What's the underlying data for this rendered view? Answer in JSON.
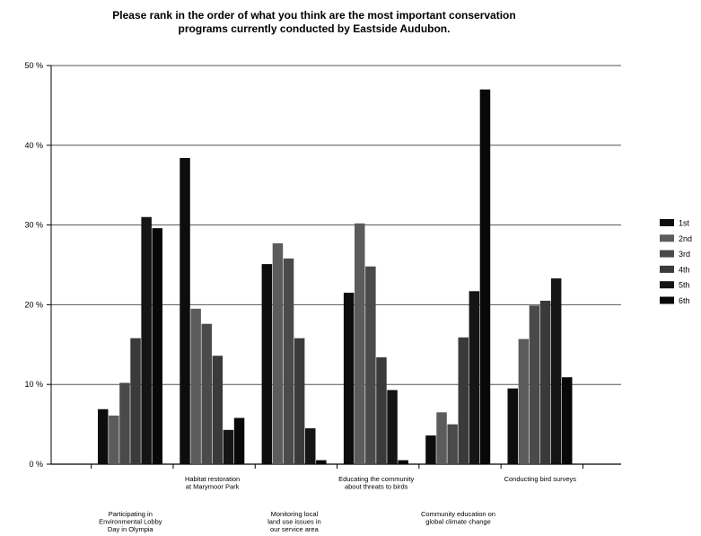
{
  "chart_data": {
    "type": "bar",
    "title_lines": [
      "Please rank in the order of what you think are the most important conservation",
      "programs currently conducted by Eastside Audubon."
    ],
    "categories": [
      "Participating in Environmental Lobby Day in Olympia",
      "Habitat restoration at Marymoor Park",
      "Monitoring local land use issues in our service area",
      "Educating the community about threats to birds",
      "Community education on global climate change",
      "Conducting bird surveys"
    ],
    "category_label_lines": [
      [
        "Participating in",
        "Environmental Lobby",
        "Day in Olympia"
      ],
      [
        "Habitat restoration",
        "at Marymoor Park"
      ],
      [
        "Monitoring local",
        "land use issues in",
        "our service area"
      ],
      [
        "Educating the community",
        "about threats to birds"
      ],
      [
        "Community education on",
        "global climate change"
      ],
      [
        "Conducting bird surveys"
      ]
    ],
    "series": [
      {
        "name": "1st",
        "color": "#0d0d0d",
        "values": [
          6.9,
          38.4,
          25.1,
          21.5,
          3.6,
          9.5
        ]
      },
      {
        "name": "2nd",
        "color": "#5c5c5c",
        "values": [
          6.1,
          19.5,
          27.7,
          30.2,
          6.5,
          15.7
        ]
      },
      {
        "name": "3rd",
        "color": "#4a4a4a",
        "values": [
          10.2,
          17.6,
          25.8,
          24.8,
          5.0,
          19.9
        ]
      },
      {
        "name": "4th",
        "color": "#3a3a3a",
        "values": [
          15.8,
          13.6,
          15.8,
          13.4,
          15.9,
          20.5
        ]
      },
      {
        "name": "5th",
        "color": "#151515",
        "values": [
          31.0,
          4.3,
          4.5,
          9.3,
          21.7,
          23.3
        ]
      },
      {
        "name": "6th",
        "color": "#080808",
        "values": [
          29.6,
          5.8,
          0.5,
          0.5,
          47.0,
          10.9
        ]
      }
    ],
    "y_ticks": [
      0,
      10,
      20,
      30,
      40,
      50
    ],
    "y_tick_labels": [
      "0 %",
      "10 %",
      "20 %",
      "30 %",
      "40 %",
      "50 %"
    ],
    "ylim": [
      0,
      50
    ],
    "grid": true,
    "legend_position": "right"
  }
}
